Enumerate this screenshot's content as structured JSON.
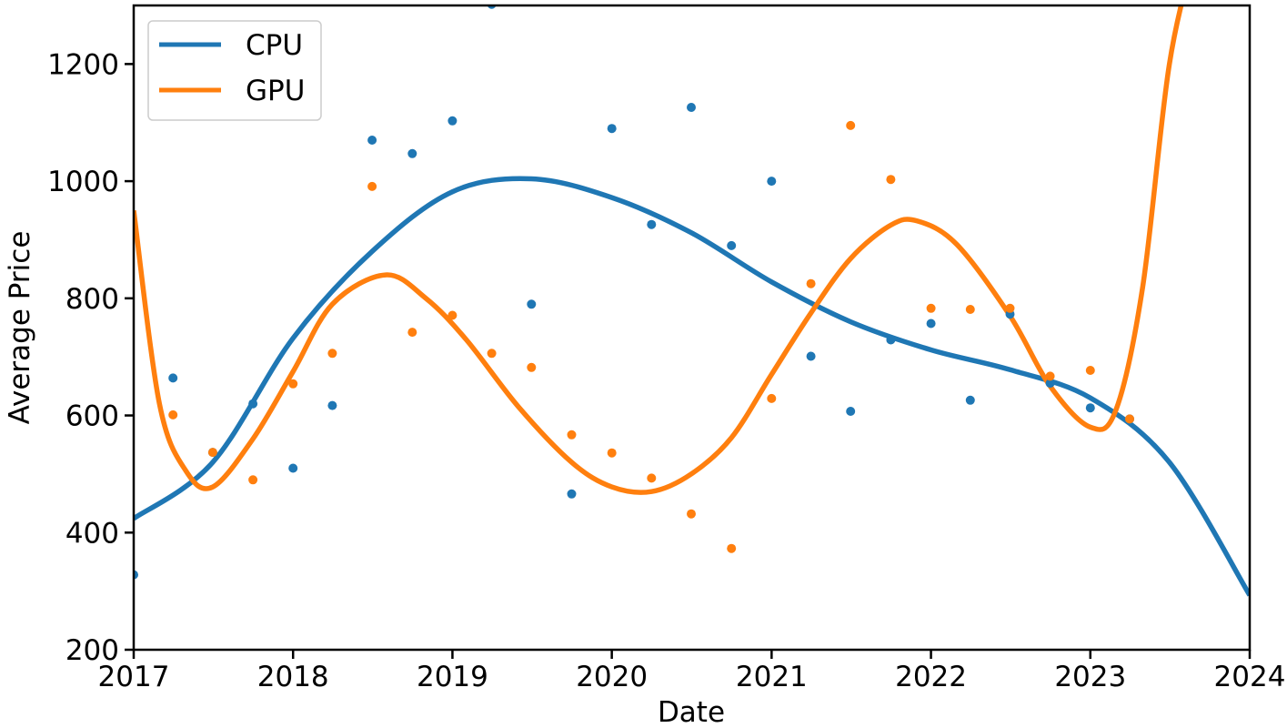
{
  "chart_data": {
    "type": "scatter",
    "title": "",
    "xlabel": "Date",
    "ylabel": "Average Price",
    "x_ticks": [
      "2017",
      "2018",
      "2019",
      "2020",
      "2021",
      "2022",
      "2023",
      "2024"
    ],
    "y_ticks": [
      "200",
      "400",
      "600",
      "800",
      "1000",
      "1200"
    ],
    "xlim": [
      "2017-01-01",
      "2024-01-01"
    ],
    "ylim": [
      200,
      1300
    ],
    "grid": false,
    "legend": {
      "placement": "top-left",
      "entries": [
        "CPU",
        "GPU"
      ]
    },
    "x": [
      "2017-01-01",
      "2017-04-01",
      "2017-07-01",
      "2017-10-01",
      "2018-01-01",
      "2018-04-01",
      "2018-07-01",
      "2018-10-01",
      "2019-01-01",
      "2019-04-01",
      "2019-07-01",
      "2019-10-01",
      "2020-01-01",
      "2020-04-01",
      "2020-07-01",
      "2020-10-01",
      "2021-01-01",
      "2021-04-01",
      "2021-07-01",
      "2021-10-01",
      "2022-01-01",
      "2022-04-01",
      "2022-07-01",
      "2022-10-01",
      "2023-01-01",
      "2023-04-01"
    ],
    "series": [
      {
        "name": "CPU",
        "color": "#1f77b4",
        "points": [
          328,
          664,
          537,
          620,
          510,
          617,
          1070,
          1047,
          1103,
          1302,
          790,
          466,
          1090,
          926,
          1126,
          890,
          1000,
          701,
          607,
          729,
          757,
          626,
          773,
          655,
          613,
          594
        ],
        "trend": [
          [
            "2017-01-01",
            424
          ],
          [
            "2017-07-01",
            520
          ],
          [
            "2018-01-01",
            732
          ],
          [
            "2018-07-01",
            880
          ],
          [
            "2019-01-01",
            982
          ],
          [
            "2019-07-01",
            1004
          ],
          [
            "2020-01-01",
            972
          ],
          [
            "2020-07-01",
            912
          ],
          [
            "2021-01-01",
            828
          ],
          [
            "2021-07-01",
            760
          ],
          [
            "2022-01-01",
            712
          ],
          [
            "2022-07-01",
            678
          ],
          [
            "2023-01-01",
            630
          ],
          [
            "2023-07-01",
            520
          ],
          [
            "2024-01-01",
            293
          ]
        ]
      },
      {
        "name": "GPU",
        "color": "#ff7f0e",
        "points": [
          null,
          601,
          537,
          490,
          654,
          706,
          991,
          742,
          771,
          706,
          682,
          567,
          536,
          493,
          432,
          373,
          629,
          825,
          1095,
          1003,
          783,
          781,
          783,
          667,
          677,
          594
        ],
        "trend": [
          [
            "2017-01-01",
            950
          ],
          [
            "2017-03-01",
            620
          ],
          [
            "2017-05-01",
            505
          ],
          [
            "2017-07-01",
            478
          ],
          [
            "2017-10-01",
            560
          ],
          [
            "2018-01-01",
            675
          ],
          [
            "2018-04-01",
            790
          ],
          [
            "2018-08-01",
            840
          ],
          [
            "2018-11-01",
            800
          ],
          [
            "2019-02-01",
            730
          ],
          [
            "2019-06-01",
            615
          ],
          [
            "2019-10-01",
            520
          ],
          [
            "2020-01-01",
            478
          ],
          [
            "2020-04-01",
            470
          ],
          [
            "2020-07-01",
            500
          ],
          [
            "2020-10-01",
            562
          ],
          [
            "2021-01-01",
            670
          ],
          [
            "2021-04-01",
            775
          ],
          [
            "2021-07-01",
            868
          ],
          [
            "2021-10-01",
            925
          ],
          [
            "2021-12-01",
            932
          ],
          [
            "2022-03-01",
            892
          ],
          [
            "2022-07-01",
            770
          ],
          [
            "2022-10-01",
            650
          ],
          [
            "2023-01-01",
            580
          ],
          [
            "2023-03-01",
            610
          ],
          [
            "2023-05-01",
            820
          ],
          [
            "2023-07-01",
            1200
          ],
          [
            "2023-09-01",
            1400
          ]
        ]
      }
    ]
  }
}
